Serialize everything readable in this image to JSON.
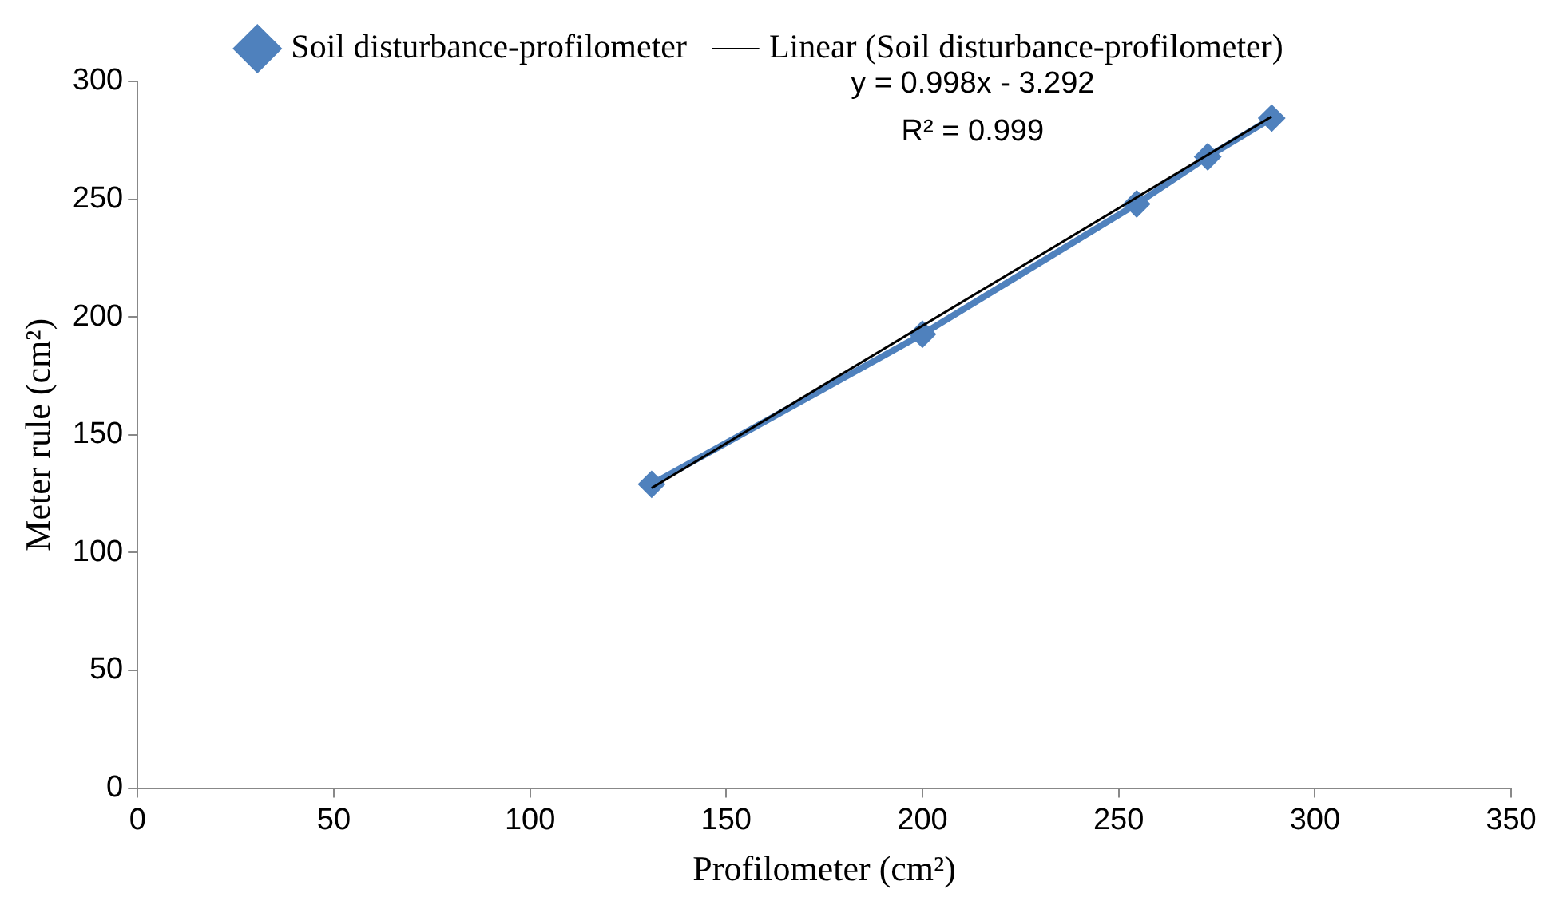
{
  "chart_data": {
    "type": "scatter",
    "xlabel": "Profilometer (cm²)",
    "ylabel": "Meter rule (cm²)",
    "xlim": [
      0,
      350
    ],
    "xticks": [
      0,
      50,
      100,
      150,
      200,
      250,
      300,
      350
    ],
    "ylim": [
      0,
      300
    ],
    "yticks": [
      0,
      50,
      100,
      150,
      200,
      250,
      300
    ],
    "grid": false,
    "legend": "top",
    "marker": "diamond",
    "line_style": "solid",
    "annotations": [
      "y = 0.998x - 3.292",
      "R² = 0.999"
    ],
    "series": [
      {
        "name": "Soil disturbance-profilometer",
        "type": "line",
        "color": "#4f81bd",
        "x": [
          131,
          200,
          254.6,
          272.7,
          289
        ],
        "values": [
          129,
          192.7,
          248,
          268,
          284.4
        ]
      },
      {
        "name": "Linear (Soil disturbance-profilometer)",
        "type": "line",
        "marker": "none",
        "color": "#000000",
        "x": [
          131,
          289
        ],
        "values": [
          127.4,
          285.1
        ]
      }
    ]
  }
}
